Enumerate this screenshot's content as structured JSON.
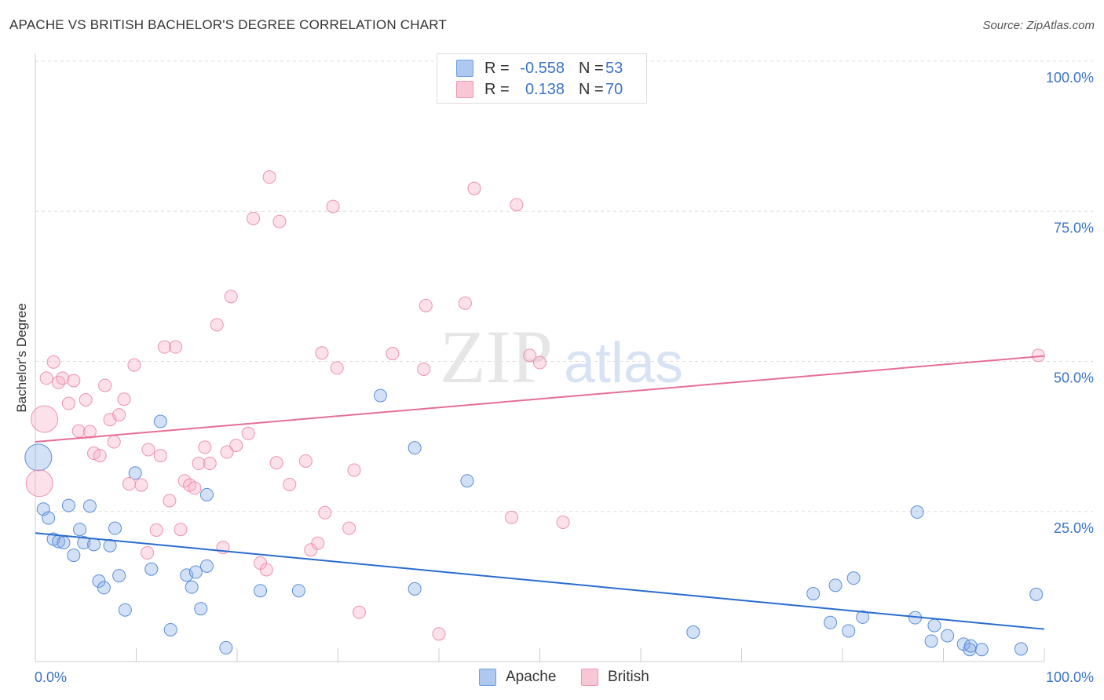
{
  "title": "APACHE VS BRITISH BACHELOR'S DEGREE CORRELATION CHART",
  "source": "Source: ZipAtlas.com",
  "watermark": {
    "zip": "ZIP",
    "atlas": "atlas"
  },
  "legend_top": [
    {
      "swatch_color": "#aec8f0",
      "border_color": "#6f9fe0",
      "r_label": "R =",
      "r_value": "-0.558",
      "n_label": "N =",
      "n_value": "53"
    },
    {
      "swatch_color": "#f8c6d4",
      "border_color": "#ee99b2",
      "r_label": "R =",
      "r_value": "0.138",
      "n_label": "N =",
      "n_value": "70"
    }
  ],
  "legend_bottom": [
    {
      "label": "Apache",
      "swatch_color": "#aec8f0",
      "border_color": "#6f9fe0"
    },
    {
      "label": "British",
      "swatch_color": "#f8c6d4",
      "border_color": "#ee99b2"
    }
  ],
  "colors": {
    "apache_fill": "rgba(130,170,230,0.35)",
    "apache_stroke": "#5b8ed8",
    "apache_line": "#2a6bd0",
    "british_fill": "rgba(245,170,195,0.35)",
    "british_stroke": "#ec92b0",
    "british_line": "#e46e97",
    "tick_label": "#3b73c8",
    "grid": "#dddddd"
  },
  "chart_data": {
    "type": "scatter",
    "title": "APACHE VS BRITISH BACHELOR'S DEGREE CORRELATION CHART",
    "xlabel": "",
    "ylabel": "Bachelor's Degree",
    "xlim": [
      0,
      100
    ],
    "ylim": [
      0,
      100
    ],
    "x_tick_labels": [
      "0.0%",
      "100.0%"
    ],
    "y_ticks": [
      25,
      50,
      75,
      100
    ],
    "y_tick_labels": [
      "25.0%",
      "50.0%",
      "75.0%",
      "100.0%"
    ],
    "grid": true,
    "legend_placement": "top-center",
    "series": [
      {
        "name": "Apache",
        "trend": {
          "x": [
            0,
            100
          ],
          "y": [
            21.4,
            5.4
          ]
        },
        "points": [
          {
            "x": 0.3,
            "y": 34.0,
            "big": true
          },
          {
            "x": 0.8,
            "y": 25.4
          },
          {
            "x": 1.3,
            "y": 23.9
          },
          {
            "x": 1.8,
            "y": 20.4
          },
          {
            "x": 2.3,
            "y": 20.0
          },
          {
            "x": 2.8,
            "y": 19.8
          },
          {
            "x": 3.3,
            "y": 26.0
          },
          {
            "x": 3.8,
            "y": 17.7
          },
          {
            "x": 4.4,
            "y": 22.0
          },
          {
            "x": 4.8,
            "y": 19.8
          },
          {
            "x": 5.4,
            "y": 25.9
          },
          {
            "x": 5.8,
            "y": 19.5
          },
          {
            "x": 6.3,
            "y": 13.4
          },
          {
            "x": 6.8,
            "y": 12.3
          },
          {
            "x": 7.4,
            "y": 19.3
          },
          {
            "x": 7.9,
            "y": 22.2
          },
          {
            "x": 8.3,
            "y": 14.3
          },
          {
            "x": 8.9,
            "y": 8.6
          },
          {
            "x": 9.9,
            "y": 31.4
          },
          {
            "x": 11.5,
            "y": 15.4
          },
          {
            "x": 12.4,
            "y": 40.0
          },
          {
            "x": 13.4,
            "y": 5.3
          },
          {
            "x": 15.0,
            "y": 14.4
          },
          {
            "x": 15.5,
            "y": 12.4
          },
          {
            "x": 15.9,
            "y": 14.9
          },
          {
            "x": 16.4,
            "y": 8.8
          },
          {
            "x": 17.0,
            "y": 15.9
          },
          {
            "x": 17.0,
            "y": 27.8
          },
          {
            "x": 18.9,
            "y": 2.3
          },
          {
            "x": 22.3,
            "y": 11.8
          },
          {
            "x": 26.1,
            "y": 11.8
          },
          {
            "x": 34.2,
            "y": 44.3
          },
          {
            "x": 37.6,
            "y": 12.1
          },
          {
            "x": 37.6,
            "y": 35.6
          },
          {
            "x": 42.8,
            "y": 30.1
          },
          {
            "x": 65.2,
            "y": 4.9
          },
          {
            "x": 77.1,
            "y": 11.3
          },
          {
            "x": 78.8,
            "y": 6.5
          },
          {
            "x": 79.3,
            "y": 12.7
          },
          {
            "x": 80.6,
            "y": 5.1
          },
          {
            "x": 81.1,
            "y": 13.9
          },
          {
            "x": 82.0,
            "y": 7.4
          },
          {
            "x": 87.2,
            "y": 7.3
          },
          {
            "x": 87.4,
            "y": 24.9
          },
          {
            "x": 88.8,
            "y": 3.4
          },
          {
            "x": 89.1,
            "y": 6.0
          },
          {
            "x": 90.4,
            "y": 4.3
          },
          {
            "x": 92.0,
            "y": 2.9
          },
          {
            "x": 92.6,
            "y": 2.0
          },
          {
            "x": 92.7,
            "y": 2.6
          },
          {
            "x": 93.8,
            "y": 2.0
          },
          {
            "x": 97.7,
            "y": 2.1
          },
          {
            "x": 99.2,
            "y": 11.2
          }
        ]
      },
      {
        "name": "British",
        "trend": {
          "x": [
            0,
            100
          ],
          "y": [
            36.6,
            50.9
          ]
        },
        "points": [
          {
            "x": 0.4,
            "y": 29.7,
            "big": true
          },
          {
            "x": 0.9,
            "y": 40.4,
            "big": true
          },
          {
            "x": 1.1,
            "y": 47.2
          },
          {
            "x": 1.8,
            "y": 49.9
          },
          {
            "x": 2.3,
            "y": 46.5
          },
          {
            "x": 2.7,
            "y": 47.2
          },
          {
            "x": 3.3,
            "y": 43.0
          },
          {
            "x": 3.8,
            "y": 46.8
          },
          {
            "x": 4.3,
            "y": 38.4
          },
          {
            "x": 5.0,
            "y": 43.6
          },
          {
            "x": 5.4,
            "y": 38.3
          },
          {
            "x": 5.8,
            "y": 34.7
          },
          {
            "x": 6.4,
            "y": 34.3
          },
          {
            "x": 6.9,
            "y": 46.0
          },
          {
            "x": 7.4,
            "y": 40.3
          },
          {
            "x": 7.8,
            "y": 36.6
          },
          {
            "x": 8.3,
            "y": 41.1
          },
          {
            "x": 8.8,
            "y": 43.7
          },
          {
            "x": 9.3,
            "y": 29.6
          },
          {
            "x": 9.8,
            "y": 49.4
          },
          {
            "x": 10.5,
            "y": 29.4
          },
          {
            "x": 11.1,
            "y": 18.1
          },
          {
            "x": 11.2,
            "y": 35.3
          },
          {
            "x": 12.0,
            "y": 21.9
          },
          {
            "x": 12.4,
            "y": 34.3
          },
          {
            "x": 12.8,
            "y": 52.4
          },
          {
            "x": 13.3,
            "y": 26.8
          },
          {
            "x": 13.9,
            "y": 52.4
          },
          {
            "x": 14.4,
            "y": 22.0
          },
          {
            "x": 14.8,
            "y": 30.1
          },
          {
            "x": 15.3,
            "y": 29.4
          },
          {
            "x": 15.8,
            "y": 28.9
          },
          {
            "x": 16.2,
            "y": 33.0
          },
          {
            "x": 16.8,
            "y": 35.7
          },
          {
            "x": 17.3,
            "y": 33.0
          },
          {
            "x": 18.0,
            "y": 56.1
          },
          {
            "x": 18.6,
            "y": 19.0
          },
          {
            "x": 19.0,
            "y": 34.9
          },
          {
            "x": 19.4,
            "y": 60.8
          },
          {
            "x": 19.9,
            "y": 36.0
          },
          {
            "x": 21.1,
            "y": 38.0
          },
          {
            "x": 21.6,
            "y": 73.8
          },
          {
            "x": 22.3,
            "y": 16.4
          },
          {
            "x": 22.9,
            "y": 15.3
          },
          {
            "x": 23.2,
            "y": 80.7
          },
          {
            "x": 23.9,
            "y": 33.1
          },
          {
            "x": 24.2,
            "y": 73.3
          },
          {
            "x": 25.2,
            "y": 29.5
          },
          {
            "x": 26.8,
            "y": 33.4
          },
          {
            "x": 27.3,
            "y": 18.6
          },
          {
            "x": 28.0,
            "y": 19.7
          },
          {
            "x": 28.4,
            "y": 51.4
          },
          {
            "x": 28.7,
            "y": 24.8
          },
          {
            "x": 29.5,
            "y": 75.8
          },
          {
            "x": 29.9,
            "y": 48.9
          },
          {
            "x": 31.1,
            "y": 22.2
          },
          {
            "x": 31.6,
            "y": 31.9
          },
          {
            "x": 32.1,
            "y": 8.2
          },
          {
            "x": 35.4,
            "y": 51.3
          },
          {
            "x": 38.5,
            "y": 48.7
          },
          {
            "x": 38.7,
            "y": 59.3
          },
          {
            "x": 40.0,
            "y": 4.6
          },
          {
            "x": 42.6,
            "y": 59.7
          },
          {
            "x": 43.5,
            "y": 78.8
          },
          {
            "x": 47.2,
            "y": 24.0
          },
          {
            "x": 47.7,
            "y": 76.1
          },
          {
            "x": 49.0,
            "y": 51.0
          },
          {
            "x": 50.0,
            "y": 49.8
          },
          {
            "x": 52.3,
            "y": 23.2
          },
          {
            "x": 99.4,
            "y": 51.0
          }
        ]
      }
    ]
  }
}
